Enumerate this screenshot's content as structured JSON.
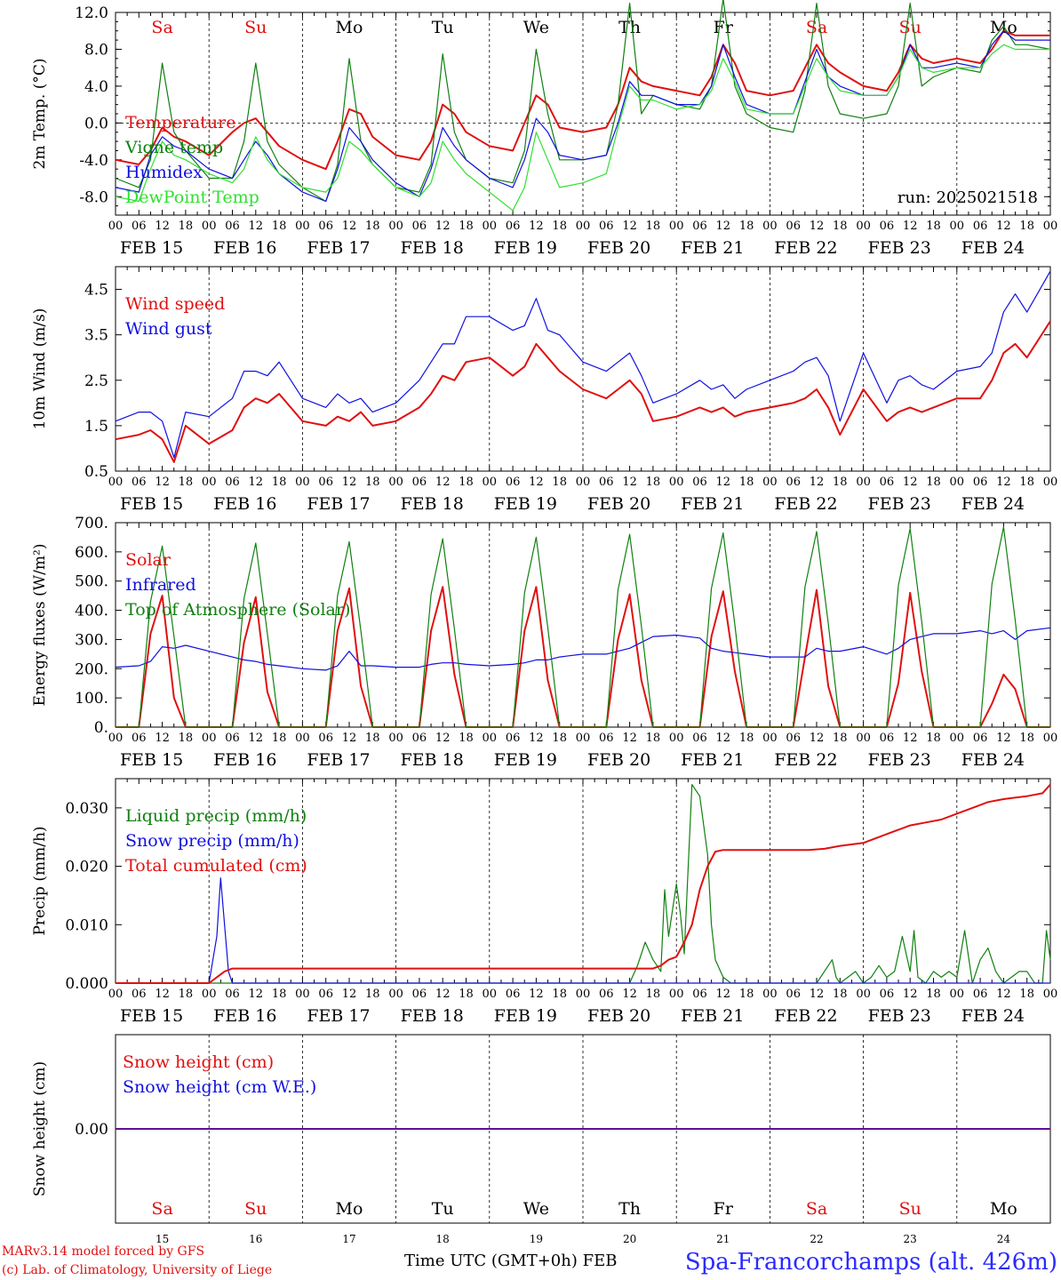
{
  "colors": {
    "red": "#e01010",
    "green": "#108010",
    "blue": "#1010e0",
    "lightgreen": "#30e030",
    "black": "#000000",
    "weekend": "#e01010",
    "footer_blue": "#2a2aff"
  },
  "days": {
    "abbr": [
      "Sa",
      "Su",
      "Mo",
      "Tu",
      "We",
      "Th",
      "Fr",
      "Sa",
      "Su",
      "Mo"
    ],
    "weekend": [
      true,
      true,
      false,
      false,
      false,
      false,
      false,
      true,
      true,
      false
    ],
    "dates": [
      "FEB 15",
      "FEB 16",
      "FEB 17",
      "FEB 18",
      "FEB 19",
      "FEB 20",
      "FEB 21",
      "FEB 22",
      "FEB 23",
      "FEB 24"
    ],
    "day_numbers": [
      "15",
      "16",
      "17",
      "18",
      "19",
      "20",
      "21",
      "22",
      "23",
      "24"
    ],
    "hour_ticks": [
      "00",
      "06",
      "12",
      "18"
    ],
    "final_hour": "00"
  },
  "footer": {
    "model": "MARv3.14 model forced by GFS",
    "credit": "(c) Lab. of Climatology, University of Liege",
    "xlabel": "Time UTC (GMT+0h) FEB",
    "station": "Spa-Francorchamps (alt. 426m)"
  },
  "chart_data": [
    {
      "type": "line",
      "ylabel": "2m Temp. (°C)",
      "ylim": [
        -10,
        12
      ],
      "yticks": [
        "12.0",
        "8.0",
        "4.0",
        "0.0",
        "-4.0",
        "-8.0"
      ],
      "ytick_values": [
        12,
        8,
        4,
        0,
        -4,
        -8
      ],
      "zero_line": true,
      "annotation": "run: 2025021518",
      "x_hours": [
        0,
        6,
        9,
        12,
        15,
        18,
        24,
        30,
        33,
        36,
        39,
        42,
        48,
        54,
        57,
        60,
        63,
        66,
        72,
        78,
        81,
        84,
        87,
        90,
        96,
        102,
        105,
        108,
        111,
        114,
        120,
        126,
        129,
        132,
        135,
        138,
        144,
        150,
        153,
        156,
        159,
        162,
        168,
        174,
        177,
        180,
        183,
        186,
        192,
        198,
        201,
        204,
        207,
        210,
        216,
        222,
        225,
        228,
        231,
        234,
        240
      ],
      "series": [
        {
          "name": "Temperature",
          "color": "red",
          "values": [
            -4.0,
            -4.5,
            -3.0,
            -0.5,
            -1.5,
            -2.0,
            -3.5,
            -1.0,
            0.0,
            0.5,
            -1.0,
            -2.5,
            -4.0,
            -5.0,
            -2.0,
            1.5,
            1.0,
            -1.5,
            -3.5,
            -4.0,
            -2.0,
            2.0,
            1.0,
            -1.0,
            -2.5,
            -3.0,
            0.0,
            3.0,
            2.0,
            -0.5,
            -1.0,
            -0.5,
            2.0,
            6.0,
            4.5,
            4.0,
            3.5,
            3.0,
            5.0,
            8.5,
            6.5,
            3.5,
            3.0,
            3.5,
            6.0,
            8.5,
            6.5,
            5.5,
            4.0,
            3.5,
            5.5,
            8.5,
            7.0,
            6.5,
            7.0,
            6.5,
            8.0,
            10.0,
            9.5,
            9.5,
            9.5
          ]
        },
        {
          "name": "Vigne temp",
          "color": "green",
          "values": [
            -6.0,
            -7.0,
            -4.0,
            6.5,
            -1.0,
            -3.0,
            -6.0,
            -6.0,
            -2.0,
            6.5,
            -2.0,
            -4.5,
            -7.0,
            -8.5,
            -4.5,
            7.0,
            -2.0,
            -4.5,
            -7.0,
            -7.5,
            -4.5,
            7.5,
            -1.0,
            -4.0,
            -6.0,
            -6.5,
            -3.0,
            8.0,
            1.0,
            -4.0,
            -4.0,
            -3.5,
            2.0,
            13.0,
            1.0,
            3.0,
            2.0,
            1.5,
            4.0,
            13.5,
            4.0,
            1.0,
            -0.5,
            -1.0,
            3.5,
            13.0,
            4.0,
            1.0,
            0.5,
            1.0,
            4.0,
            13.0,
            4.0,
            5.0,
            6.0,
            5.5,
            9.0,
            10.5,
            8.5,
            8.5,
            8.0
          ]
        },
        {
          "name": "Humidex",
          "color": "blue",
          "values": [
            -7.0,
            -7.5,
            -3.5,
            -1.5,
            -2.5,
            -3.0,
            -5.0,
            -6.0,
            -4.0,
            -2.0,
            -3.5,
            -5.5,
            -7.5,
            -8.5,
            -5.0,
            -0.5,
            -2.0,
            -4.0,
            -6.5,
            -8.0,
            -5.0,
            -0.5,
            -2.5,
            -4.0,
            -6.0,
            -7.0,
            -4.0,
            0.5,
            -1.0,
            -3.5,
            -4.0,
            -3.5,
            0.0,
            4.5,
            3.0,
            3.0,
            2.0,
            2.0,
            4.0,
            8.5,
            5.0,
            2.0,
            1.0,
            1.0,
            4.5,
            8.0,
            5.0,
            4.0,
            3.0,
            3.0,
            5.0,
            8.5,
            6.0,
            6.0,
            6.5,
            6.0,
            8.5,
            10.0,
            9.0,
            9.0,
            9.0
          ]
        },
        {
          "name": "DewPoint Temp",
          "color": "lightgreen",
          "values": [
            -8.0,
            -8.5,
            -5.0,
            -2.0,
            -3.5,
            -4.0,
            -5.5,
            -6.5,
            -5.0,
            -1.5,
            -4.0,
            -5.5,
            -7.0,
            -7.5,
            -6.0,
            -2.0,
            -3.0,
            -4.5,
            -7.0,
            -8.0,
            -6.5,
            -2.0,
            -4.0,
            -5.5,
            -7.5,
            -9.5,
            -7.0,
            -1.0,
            -4.0,
            -7.0,
            -6.5,
            -5.5,
            -0.5,
            4.0,
            2.5,
            2.5,
            1.5,
            2.0,
            3.5,
            7.0,
            4.5,
            1.5,
            1.0,
            1.0,
            4.0,
            7.0,
            5.0,
            3.5,
            3.0,
            3.0,
            5.0,
            8.0,
            6.0,
            5.5,
            6.0,
            6.0,
            7.5,
            8.5,
            8.0,
            8.0,
            8.0
          ]
        }
      ]
    },
    {
      "type": "line",
      "ylabel": "10m Wind (m/s)",
      "ylim": [
        0.5,
        5.0
      ],
      "yticks": [
        "4.5",
        "3.5",
        "2.5",
        "1.5",
        "0.5"
      ],
      "ytick_values": [
        4.5,
        3.5,
        2.5,
        1.5,
        0.5
      ],
      "x_hours": [
        0,
        6,
        9,
        12,
        15,
        18,
        24,
        30,
        33,
        36,
        39,
        42,
        48,
        54,
        57,
        60,
        63,
        66,
        72,
        78,
        81,
        84,
        87,
        90,
        96,
        102,
        105,
        108,
        111,
        114,
        120,
        126,
        129,
        132,
        135,
        138,
        144,
        150,
        153,
        156,
        159,
        162,
        168,
        174,
        177,
        180,
        183,
        186,
        192,
        198,
        201,
        204,
        207,
        210,
        216,
        222,
        225,
        228,
        231,
        234,
        240
      ],
      "series": [
        {
          "name": "Wind speed",
          "color": "red",
          "values": [
            1.2,
            1.3,
            1.4,
            1.2,
            0.7,
            1.5,
            1.1,
            1.4,
            1.9,
            2.1,
            2.0,
            2.2,
            1.6,
            1.5,
            1.7,
            1.6,
            1.8,
            1.5,
            1.6,
            1.9,
            2.2,
            2.6,
            2.5,
            2.9,
            3.0,
            2.6,
            2.8,
            3.3,
            3.0,
            2.7,
            2.3,
            2.1,
            2.3,
            2.5,
            2.2,
            1.6,
            1.7,
            1.9,
            1.8,
            1.9,
            1.7,
            1.8,
            1.9,
            2.0,
            2.1,
            2.3,
            1.9,
            1.3,
            2.3,
            1.6,
            1.8,
            1.9,
            1.8,
            1.9,
            2.1,
            2.1,
            2.5,
            3.1,
            3.3,
            3.0,
            3.8
          ]
        },
        {
          "name": "Wind gust",
          "color": "blue",
          "values": [
            1.6,
            1.8,
            1.8,
            1.6,
            0.8,
            1.8,
            1.7,
            2.1,
            2.7,
            2.7,
            2.6,
            2.9,
            2.1,
            1.9,
            2.2,
            2.0,
            2.1,
            1.8,
            2.0,
            2.5,
            2.9,
            3.3,
            3.3,
            3.9,
            3.9,
            3.6,
            3.7,
            4.3,
            3.6,
            3.5,
            2.9,
            2.7,
            2.9,
            3.1,
            2.6,
            2.0,
            2.2,
            2.5,
            2.3,
            2.4,
            2.1,
            2.3,
            2.5,
            2.7,
            2.9,
            3.0,
            2.6,
            1.6,
            3.1,
            2.0,
            2.5,
            2.6,
            2.4,
            2.3,
            2.7,
            2.8,
            3.1,
            4.0,
            4.4,
            4.0,
            4.9
          ]
        }
      ]
    },
    {
      "type": "line",
      "ylabel": "Energy fluxes (W/m²)",
      "ylim": [
        0,
        700
      ],
      "yticks": [
        "700.",
        "600.",
        "500.",
        "400.",
        "300.",
        "200.",
        "100.",
        "0."
      ],
      "ytick_values": [
        700,
        600,
        500,
        400,
        300,
        200,
        100,
        0
      ],
      "x_hours": [
        0,
        6,
        9,
        12,
        15,
        18,
        24,
        30,
        33,
        36,
        39,
        42,
        48,
        54,
        57,
        60,
        63,
        66,
        72,
        78,
        81,
        84,
        87,
        90,
        96,
        102,
        105,
        108,
        111,
        114,
        120,
        126,
        129,
        132,
        135,
        138,
        144,
        150,
        153,
        156,
        159,
        162,
        168,
        174,
        177,
        180,
        183,
        186,
        192,
        198,
        201,
        204,
        207,
        210,
        216,
        222,
        225,
        228,
        231,
        234,
        240
      ],
      "series": [
        {
          "name": "Solar",
          "color": "red",
          "values": [
            0,
            0,
            320,
            450,
            100,
            0,
            0,
            0,
            290,
            445,
            120,
            0,
            0,
            0,
            330,
            475,
            140,
            0,
            0,
            0,
            330,
            480,
            180,
            0,
            0,
            0,
            330,
            480,
            160,
            0,
            0,
            0,
            300,
            455,
            160,
            0,
            0,
            0,
            310,
            465,
            190,
            0,
            0,
            0,
            240,
            470,
            140,
            0,
            0,
            0,
            150,
            460,
            190,
            0,
            0,
            0,
            80,
            180,
            130,
            0,
            0
          ]
        },
        {
          "name": "Infrared",
          "color": "blue",
          "values": [
            205,
            210,
            225,
            275,
            270,
            280,
            260,
            240,
            230,
            225,
            215,
            210,
            200,
            195,
            210,
            260,
            210,
            210,
            205,
            205,
            215,
            220,
            220,
            215,
            210,
            215,
            220,
            230,
            230,
            240,
            250,
            250,
            260,
            270,
            290,
            310,
            315,
            305,
            270,
            260,
            255,
            250,
            240,
            240,
            240,
            270,
            260,
            260,
            275,
            250,
            270,
            300,
            310,
            320,
            320,
            330,
            320,
            330,
            300,
            330,
            340
          ]
        },
        {
          "name": "Top of Atmosphere (Solar)",
          "color": "green",
          "values": [
            0,
            0,
            430,
            620,
            310,
            0,
            0,
            0,
            440,
            630,
            320,
            0,
            0,
            0,
            450,
            635,
            330,
            0,
            0,
            0,
            455,
            645,
            335,
            0,
            0,
            0,
            460,
            650,
            340,
            0,
            0,
            0,
            470,
            660,
            345,
            0,
            0,
            0,
            475,
            665,
            350,
            0,
            0,
            0,
            480,
            670,
            355,
            0,
            0,
            0,
            485,
            680,
            360,
            0,
            0,
            0,
            490,
            685,
            365,
            0,
            0
          ]
        }
      ]
    },
    {
      "type": "line",
      "ylabel": "Precip (mm/h)",
      "ylim": [
        0,
        0.035
      ],
      "yticks": [
        "0.030",
        "0.020",
        "0.010",
        "0.000"
      ],
      "ytick_values": [
        0.03,
        0.02,
        0.01,
        0.0
      ],
      "series": [
        {
          "name": "Liquid precip (mm/h)",
          "color": "green",
          "x_hours": [
            0,
            132,
            134,
            136,
            138,
            140,
            141,
            142,
            144,
            145,
            146,
            148,
            150,
            152,
            153,
            154,
            156,
            158,
            159,
            160,
            162,
            164,
            166,
            170,
            180,
            184,
            185,
            186,
            190,
            192,
            194,
            196,
            198,
            200,
            202,
            204,
            205,
            206,
            208,
            210,
            212,
            214,
            216,
            218,
            220,
            222,
            224,
            226,
            228,
            230,
            232,
            234,
            236,
            238,
            239,
            240
          ],
          "values": [
            0,
            0,
            0.003,
            0.007,
            0.004,
            0.002,
            0.016,
            0.008,
            0.017,
            0.012,
            0.005,
            0.034,
            0.032,
            0.022,
            0.01,
            0.004,
            0.001,
            0,
            0,
            0,
            0,
            0,
            0,
            0,
            0,
            0.004,
            0.001,
            0,
            0.002,
            0,
            0.001,
            0.003,
            0.001,
            0.002,
            0.008,
            0.002,
            0.009,
            0.001,
            0,
            0.002,
            0.001,
            0.002,
            0.001,
            0.009,
            0,
            0.004,
            0.006,
            0.002,
            0,
            0.001,
            0.002,
            0.002,
            0,
            0,
            0.009,
            0.004
          ]
        },
        {
          "name": "Snow precip (mm/h)",
          "color": "blue",
          "x_hours": [
            0,
            24,
            26,
            27,
            28,
            29,
            30,
            240
          ],
          "values": [
            0,
            0,
            0.008,
            0.018,
            0.01,
            0.002,
            0,
            0
          ]
        },
        {
          "name": "Total cumulated (cm)",
          "color": "red",
          "x_hours": [
            0,
            24,
            26,
            28,
            30,
            138,
            140,
            142,
            144,
            146,
            148,
            150,
            152,
            154,
            156,
            178,
            182,
            186,
            192,
            196,
            200,
            204,
            208,
            212,
            216,
            220,
            224,
            228,
            234,
            238,
            240
          ],
          "values": [
            0,
            0,
            0.001,
            0.002,
            0.0025,
            0.0025,
            0.003,
            0.004,
            0.0045,
            0.007,
            0.01,
            0.016,
            0.02,
            0.0225,
            0.0228,
            0.0228,
            0.023,
            0.0235,
            0.024,
            0.025,
            0.026,
            0.027,
            0.0275,
            0.028,
            0.029,
            0.03,
            0.031,
            0.0315,
            0.032,
            0.0325,
            0.034
          ]
        }
      ]
    },
    {
      "type": "line",
      "ylabel": "Snow height (cm)",
      "ylim": [
        -1,
        1
      ],
      "yticks": [
        "0.00"
      ],
      "ytick_values": [
        0
      ],
      "x_hours": [
        0,
        240
      ],
      "series": [
        {
          "name": "Snow height (cm)",
          "color": "red",
          "values": [
            0,
            0
          ]
        },
        {
          "name": "Snow height (cm W.E.)",
          "color": "blue",
          "values": [
            0,
            0
          ]
        }
      ]
    }
  ]
}
